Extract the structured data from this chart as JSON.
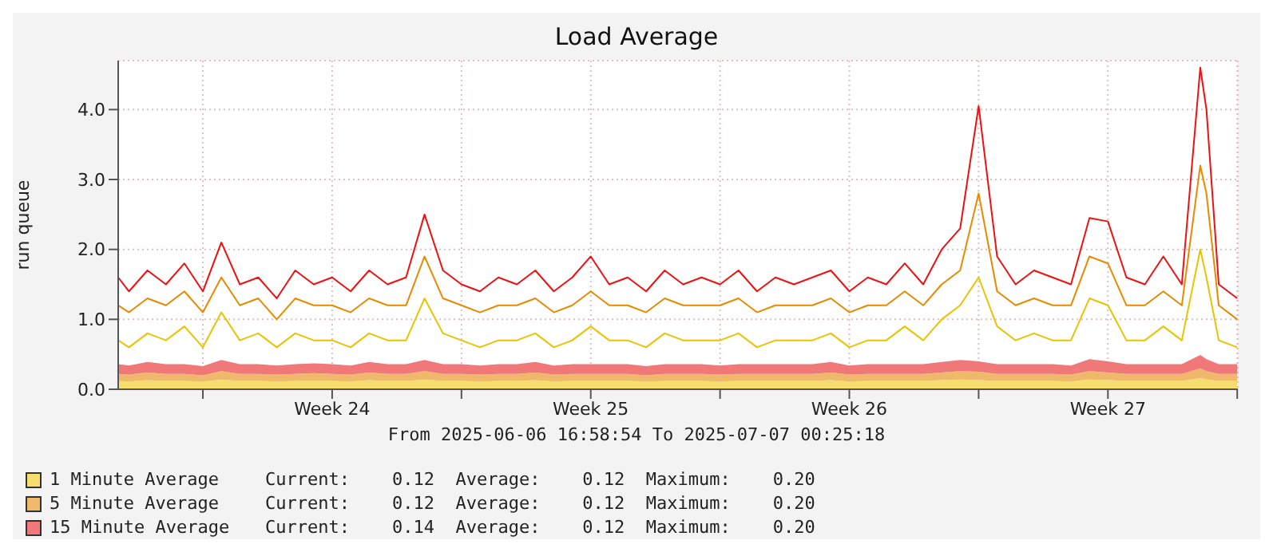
{
  "chart_data": {
    "type": "area",
    "title": "Load Average",
    "ylabel": "run queue",
    "stacked": true,
    "grid": true,
    "legend": "bottom",
    "x": [
      "2025-06-06T17:00",
      "2025-06-07T00:00",
      "2025-06-07T12:00",
      "2025-06-08T00:00",
      "2025-06-08T12:00",
      "2025-06-09T00:00",
      "2025-06-09T12:00",
      "2025-06-10T00:00",
      "2025-06-10T12:00",
      "2025-06-11T00:00",
      "2025-06-11T12:00",
      "2025-06-12T00:00",
      "2025-06-12T12:00",
      "2025-06-13T00:00",
      "2025-06-13T12:00",
      "2025-06-14T00:00",
      "2025-06-14T12:00",
      "2025-06-15T00:00",
      "2025-06-15T12:00",
      "2025-06-16T00:00",
      "2025-06-16T12:00",
      "2025-06-17T00:00",
      "2025-06-17T12:00",
      "2025-06-18T00:00",
      "2025-06-18T12:00",
      "2025-06-19T00:00",
      "2025-06-19T12:00",
      "2025-06-20T00:00",
      "2025-06-20T12:00",
      "2025-06-21T00:00",
      "2025-06-21T12:00",
      "2025-06-22T00:00",
      "2025-06-22T12:00",
      "2025-06-23T00:00",
      "2025-06-23T12:00",
      "2025-06-24T00:00",
      "2025-06-24T12:00",
      "2025-06-25T00:00",
      "2025-06-25T12:00",
      "2025-06-26T00:00",
      "2025-06-26T12:00",
      "2025-06-27T00:00",
      "2025-06-27T12:00",
      "2025-06-28T00:00",
      "2025-06-28T12:00",
      "2025-06-29T00:00",
      "2025-06-29T12:00",
      "2025-06-30T00:00",
      "2025-06-30T12:00",
      "2025-07-01T00:00",
      "2025-07-01T12:00",
      "2025-07-02T00:00",
      "2025-07-02T12:00",
      "2025-07-03T00:00",
      "2025-07-03T12:00",
      "2025-07-04T00:00",
      "2025-07-04T12:00",
      "2025-07-05T00:00",
      "2025-07-05T12:00",
      "2025-07-06T00:00",
      "2025-07-06T04:00",
      "2025-07-06T12:00",
      "2025-07-07T00:00"
    ],
    "xlim": [
      "2025-06-06T16:59",
      "2025-07-07T00:25"
    ],
    "xticks": [
      {
        "value": "2025-06-09T00:00",
        "label": null
      },
      {
        "value": "2025-06-12T12:00",
        "label": "Week 24"
      },
      {
        "value": "2025-06-16T00:00",
        "label": null
      },
      {
        "value": "2025-06-19T12:00",
        "label": "Week 25"
      },
      {
        "value": "2025-06-23T00:00",
        "label": null
      },
      {
        "value": "2025-06-26T12:00",
        "label": "Week 26"
      },
      {
        "value": "2025-06-30T00:00",
        "label": null
      },
      {
        "value": "2025-07-03T12:00",
        "label": "Week 27"
      },
      {
        "value": "2025-07-07T00:00",
        "label": null
      }
    ],
    "ylim": [
      0,
      4.7
    ],
    "yticks": [
      {
        "value": 0,
        "label": "0.0"
      },
      {
        "value": 1,
        "label": "1.0"
      },
      {
        "value": 2,
        "label": "2.0"
      },
      {
        "value": 3,
        "label": "3.0"
      },
      {
        "value": 4,
        "label": "4.0"
      }
    ],
    "series": [
      {
        "name": "1 Minute Average",
        "color": "#f5de6e",
        "values": [
          0.12,
          0.11,
          0.13,
          0.12,
          0.12,
          0.11,
          0.14,
          0.12,
          0.12,
          0.11,
          0.12,
          0.12,
          0.12,
          0.11,
          0.13,
          0.12,
          0.12,
          0.14,
          0.12,
          0.12,
          0.11,
          0.12,
          0.12,
          0.13,
          0.11,
          0.12,
          0.12,
          0.12,
          0.12,
          0.11,
          0.12,
          0.12,
          0.12,
          0.11,
          0.12,
          0.12,
          0.12,
          0.12,
          0.12,
          0.13,
          0.11,
          0.12,
          0.12,
          0.12,
          0.12,
          0.13,
          0.14,
          0.13,
          0.12,
          0.12,
          0.12,
          0.12,
          0.11,
          0.14,
          0.13,
          0.12,
          0.12,
          0.12,
          0.12,
          0.16,
          0.14,
          0.12,
          0.12
        ]
      },
      {
        "name": "5 Minute Average",
        "color": "#f0b86a",
        "values": [
          0.1,
          0.1,
          0.11,
          0.1,
          0.1,
          0.09,
          0.12,
          0.1,
          0.1,
          0.1,
          0.1,
          0.11,
          0.1,
          0.1,
          0.11,
          0.1,
          0.1,
          0.12,
          0.1,
          0.1,
          0.1,
          0.1,
          0.1,
          0.11,
          0.1,
          0.1,
          0.1,
          0.1,
          0.1,
          0.09,
          0.1,
          0.1,
          0.1,
          0.1,
          0.1,
          0.1,
          0.1,
          0.1,
          0.1,
          0.11,
          0.1,
          0.1,
          0.1,
          0.1,
          0.1,
          0.11,
          0.12,
          0.12,
          0.1,
          0.1,
          0.1,
          0.1,
          0.1,
          0.12,
          0.11,
          0.1,
          0.1,
          0.1,
          0.1,
          0.14,
          0.12,
          0.1,
          0.1
        ]
      },
      {
        "name": "15 Minute Average",
        "color": "#f07878",
        "values": [
          0.14,
          0.13,
          0.15,
          0.14,
          0.14,
          0.13,
          0.16,
          0.14,
          0.14,
          0.13,
          0.14,
          0.14,
          0.14,
          0.13,
          0.15,
          0.14,
          0.14,
          0.16,
          0.14,
          0.14,
          0.13,
          0.14,
          0.14,
          0.15,
          0.13,
          0.14,
          0.14,
          0.14,
          0.14,
          0.13,
          0.14,
          0.14,
          0.14,
          0.13,
          0.14,
          0.14,
          0.14,
          0.14,
          0.14,
          0.15,
          0.13,
          0.14,
          0.14,
          0.14,
          0.14,
          0.15,
          0.16,
          0.15,
          0.14,
          0.14,
          0.14,
          0.14,
          0.13,
          0.17,
          0.16,
          0.14,
          0.14,
          0.14,
          0.14,
          0.19,
          0.17,
          0.14,
          0.14
        ]
      },
      {
        "type": "line",
        "color": "#e8c400",
        "values": [
          0.7,
          0.6,
          0.8,
          0.7,
          0.9,
          0.6,
          1.1,
          0.7,
          0.8,
          0.6,
          0.8,
          0.7,
          0.7,
          0.6,
          0.8,
          0.7,
          0.7,
          1.3,
          0.8,
          0.7,
          0.6,
          0.7,
          0.7,
          0.8,
          0.6,
          0.7,
          0.9,
          0.7,
          0.7,
          0.6,
          0.8,
          0.7,
          0.7,
          0.7,
          0.8,
          0.6,
          0.7,
          0.7,
          0.7,
          0.8,
          0.6,
          0.7,
          0.7,
          0.9,
          0.7,
          1.0,
          1.2,
          1.6,
          0.9,
          0.7,
          0.8,
          0.7,
          0.7,
          1.3,
          1.2,
          0.7,
          0.7,
          0.9,
          0.7,
          2.0,
          1.6,
          0.7,
          0.6
        ]
      },
      {
        "type": "line",
        "color": "#e88a00",
        "values": [
          1.2,
          1.1,
          1.3,
          1.2,
          1.4,
          1.1,
          1.6,
          1.2,
          1.3,
          1.0,
          1.3,
          1.2,
          1.2,
          1.1,
          1.3,
          1.2,
          1.2,
          1.9,
          1.3,
          1.2,
          1.1,
          1.2,
          1.2,
          1.3,
          1.1,
          1.2,
          1.4,
          1.2,
          1.2,
          1.1,
          1.3,
          1.2,
          1.2,
          1.2,
          1.3,
          1.1,
          1.2,
          1.2,
          1.2,
          1.3,
          1.1,
          1.2,
          1.2,
          1.4,
          1.2,
          1.5,
          1.7,
          2.8,
          1.4,
          1.2,
          1.3,
          1.2,
          1.2,
          1.9,
          1.8,
          1.2,
          1.2,
          1.4,
          1.2,
          3.2,
          2.8,
          1.2,
          1.0
        ]
      },
      {
        "type": "line",
        "color": "#ee1111",
        "values": [
          1.6,
          1.4,
          1.7,
          1.5,
          1.8,
          1.4,
          2.1,
          1.5,
          1.6,
          1.3,
          1.7,
          1.5,
          1.6,
          1.4,
          1.7,
          1.5,
          1.6,
          2.5,
          1.7,
          1.5,
          1.4,
          1.6,
          1.5,
          1.7,
          1.4,
          1.6,
          1.9,
          1.5,
          1.6,
          1.4,
          1.7,
          1.5,
          1.6,
          1.5,
          1.7,
          1.4,
          1.6,
          1.5,
          1.6,
          1.7,
          1.4,
          1.6,
          1.5,
          1.8,
          1.5,
          2.0,
          2.3,
          4.05,
          1.9,
          1.5,
          1.7,
          1.6,
          1.5,
          2.45,
          2.4,
          1.6,
          1.5,
          1.9,
          1.5,
          4.6,
          4.0,
          1.5,
          1.3
        ]
      }
    ],
    "annotations": [
      "From 2025-06-06 16:58:54 To 2025-07-07 00:25:18",
      "Current:    0.12  Average:    0.12  Maximum:    0.20",
      "Current:    0.12  Average:    0.12  Maximum:    0.20",
      "Current:    0.14  Average:    0.12  Maximum:    0.20"
    ]
  }
}
